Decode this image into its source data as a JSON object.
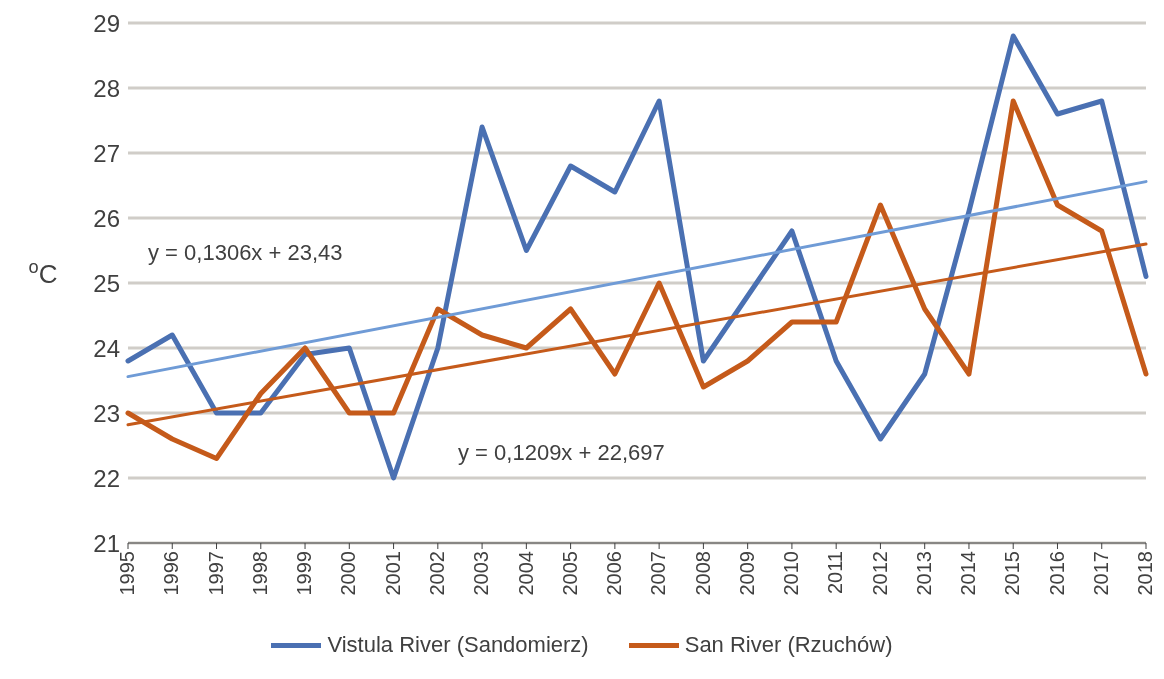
{
  "chart_data": {
    "type": "line",
    "ylabel": "$^{o}$C",
    "categories": [
      "1995",
      "1996",
      "1997",
      "1998",
      "1999",
      "2000",
      "2001",
      "2002",
      "2003",
      "2004",
      "2005",
      "2006",
      "2007",
      "2008",
      "2009",
      "2010",
      "2011",
      "2012",
      "2013",
      "2014",
      "2015",
      "2016",
      "2017",
      "2018"
    ],
    "series": [
      {
        "name": "Vistula River (Sandomierz)",
        "color": "#4a70b2",
        "values": [
          23.8,
          24.2,
          23.0,
          23.0,
          23.9,
          24.0,
          22.0,
          24.0,
          27.4,
          25.5,
          26.8,
          26.4,
          27.8,
          23.8,
          24.8,
          25.8,
          23.8,
          22.6,
          23.6,
          26.1,
          28.8,
          27.6,
          27.8,
          25.1
        ]
      },
      {
        "name": "San River (Rzuchów)",
        "color": "#c55a1a",
        "values": [
          23.0,
          22.6,
          22.3,
          23.3,
          24.0,
          23.0,
          23.0,
          24.6,
          24.2,
          24.0,
          24.6,
          23.6,
          25.0,
          23.4,
          23.8,
          24.4,
          24.4,
          26.2,
          24.6,
          23.6,
          27.8,
          26.2,
          25.8,
          23.6
        ]
      },
      {
        "type": "line",
        "color": "#6f9bd6",
        "values": [
          23.56,
          null,
          null,
          null,
          null,
          null,
          null,
          null,
          null,
          null,
          null,
          null,
          null,
          null,
          null,
          null,
          null,
          null,
          null,
          null,
          null,
          null,
          null,
          26.56
        ]
      },
      {
        "type": "line",
        "color": "#c55a1a",
        "values": [
          22.82,
          null,
          null,
          null,
          null,
          null,
          null,
          null,
          null,
          null,
          null,
          null,
          null,
          null,
          null,
          null,
          null,
          null,
          null,
          null,
          null,
          null,
          null,
          25.6
        ]
      }
    ],
    "ylim": [
      21,
      29
    ],
    "yticks": [
      21,
      22,
      23,
      24,
      25,
      26,
      27,
      28,
      29
    ],
    "grid": "y",
    "legend": "bottom",
    "marker": "none",
    "line_style": "solid",
    "annotations": [
      "y = 0,1306x + 23,43",
      "y = 0,1209x + 22,697"
    ]
  }
}
